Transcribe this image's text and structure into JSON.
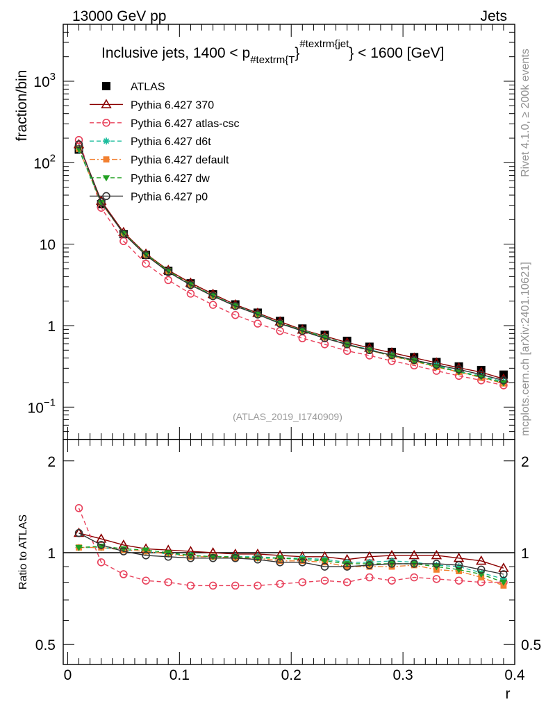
{
  "header": {
    "left": "13000 GeV pp",
    "right": "Jets"
  },
  "side_labels": {
    "rivet": "Rivet 4.1.0, ≥ 200k events",
    "mcplots": "mcplots.cern.ch [arXiv:2401.10621]"
  },
  "chart_data": [
    {
      "type": "line",
      "panel": "main",
      "title_main": "Inclusive jets, 1400 < p",
      "title_sub": "#textrm{T",
      "title_sup": "#textrm{jet",
      "title_end": "} < 1600 [GeV]",
      "ylabel": "fraction/bin",
      "yscale": "log",
      "ylim": [
        0.04,
        5000
      ],
      "xlim": [
        -0.004,
        0.4
      ],
      "yticks": [
        {
          "value": 1000,
          "base": "10",
          "exp": "3"
        },
        {
          "value": 100,
          "base": "10",
          "exp": "2"
        },
        {
          "value": 10,
          "base": "10",
          "exp": ""
        },
        {
          "value": 1,
          "base": "1",
          "exp": ""
        },
        {
          "value": 0.1,
          "base": "10",
          "exp": "−1"
        }
      ],
      "watermark": "(ATLAS_2019_I1740909)",
      "x": [
        0.01,
        0.03,
        0.05,
        0.07,
        0.09,
        0.11,
        0.13,
        0.15,
        0.17,
        0.19,
        0.21,
        0.23,
        0.25,
        0.27,
        0.29,
        0.31,
        0.33,
        0.35,
        0.37,
        0.39
      ],
      "series": [
        {
          "name": "ATLAS",
          "color": "#000000",
          "marker": "square",
          "line": "none",
          "values": [
            145,
            31,
            13.3,
            7.4,
            4.7,
            3.3,
            2.42,
            1.82,
            1.44,
            1.14,
            0.92,
            0.77,
            0.65,
            0.55,
            0.475,
            0.41,
            0.357,
            0.315,
            0.285,
            0.25
          ]
        },
        {
          "name": "Pythia 6.427 370",
          "color": "#8b0000",
          "marker": "triangle-open",
          "line": "solid",
          "values": [
            168,
            34,
            14.0,
            7.6,
            4.8,
            3.35,
            2.44,
            1.81,
            1.43,
            1.12,
            0.89,
            0.745,
            0.62,
            0.533,
            0.466,
            0.403,
            0.35,
            0.304,
            0.268,
            0.222
          ]
        },
        {
          "name": "Pythia 6.427 atlas-csc",
          "color": "#e8405a",
          "marker": "circle-open",
          "line": "dashed",
          "values": [
            190,
            28,
            10.9,
            5.75,
            3.62,
            2.47,
            1.8,
            1.35,
            1.06,
            0.86,
            0.7,
            0.59,
            0.49,
            0.43,
            0.368,
            0.325,
            0.279,
            0.242,
            0.213,
            0.185
          ]
        },
        {
          "name": "Pythia 6.427 d6t",
          "color": "#1abc9c",
          "marker": "star",
          "line": "dashed",
          "values": [
            145,
            32,
            13.6,
            7.5,
            4.68,
            3.22,
            2.37,
            1.77,
            1.4,
            1.08,
            0.88,
            0.73,
            0.59,
            0.51,
            0.43,
            0.37,
            0.325,
            0.275,
            0.24,
            0.205
          ]
        },
        {
          "name": "Pythia 6.427 default",
          "color": "#f28030",
          "marker": "square-filled",
          "line": "dashdot",
          "values": [
            148,
            32,
            13.5,
            7.4,
            4.65,
            3.2,
            2.34,
            1.74,
            1.38,
            1.07,
            0.87,
            0.72,
            0.58,
            0.5,
            0.42,
            0.365,
            0.31,
            0.27,
            0.23,
            0.195
          ]
        },
        {
          "name": "Pythia 6.427 dw",
          "color": "#22a022",
          "marker": "triangle-down",
          "line": "dashed",
          "values": [
            148,
            32.5,
            13.6,
            7.5,
            4.7,
            3.2,
            2.34,
            1.75,
            1.38,
            1.07,
            0.87,
            0.72,
            0.58,
            0.5,
            0.425,
            0.37,
            0.315,
            0.27,
            0.235,
            0.198
          ]
        },
        {
          "name": "Pythia 6.427 p0",
          "color": "#333333",
          "marker": "circle-open",
          "line": "solid",
          "values": [
            168,
            33,
            13.4,
            7.3,
            4.55,
            3.15,
            2.3,
            1.74,
            1.37,
            1.06,
            0.86,
            0.7,
            0.59,
            0.5,
            0.435,
            0.378,
            0.33,
            0.29,
            0.25,
            0.213
          ]
        }
      ]
    },
    {
      "type": "line",
      "panel": "ratio",
      "ylabel": "Ratio to ATLAS",
      "xlabel": "r",
      "yscale": "log",
      "ylim": [
        0.43,
        2.35
      ],
      "xlim": [
        -0.004,
        0.4
      ],
      "yticks": [
        {
          "value": 2,
          "label": "2"
        },
        {
          "value": 1,
          "label": "1"
        },
        {
          "value": 0.5,
          "label": "0.5"
        }
      ],
      "xticks": [
        {
          "value": 0,
          "label": "0"
        },
        {
          "value": 0.1,
          "label": "0.1"
        },
        {
          "value": 0.2,
          "label": "0.2"
        },
        {
          "value": 0.3,
          "label": "0.3"
        },
        {
          "value": 0.4,
          "label": "0.4"
        }
      ],
      "x": [
        0.01,
        0.03,
        0.05,
        0.07,
        0.09,
        0.11,
        0.13,
        0.15,
        0.17,
        0.19,
        0.21,
        0.23,
        0.25,
        0.27,
        0.29,
        0.31,
        0.33,
        0.35,
        0.37,
        0.39
      ],
      "series": [
        {
          "name": "Pythia 6.427 370",
          "color": "#8b0000",
          "marker": "triangle-open",
          "line": "solid",
          "values": [
            1.16,
            1.11,
            1.06,
            1.03,
            1.02,
            1.01,
            1.0,
            0.99,
            0.99,
            0.98,
            0.97,
            0.97,
            0.95,
            0.97,
            0.98,
            0.98,
            0.98,
            0.96,
            0.94,
            0.89
          ]
        },
        {
          "name": "Pythia 6.427 atlas-csc",
          "color": "#e8405a",
          "marker": "circle-open",
          "line": "dashed",
          "values": [
            1.4,
            0.93,
            0.85,
            0.81,
            0.8,
            0.78,
            0.78,
            0.78,
            0.78,
            0.79,
            0.8,
            0.81,
            0.8,
            0.83,
            0.81,
            0.83,
            0.82,
            0.81,
            0.8,
            0.8
          ]
        },
        {
          "name": "Pythia 6.427 d6t",
          "color": "#1abc9c",
          "marker": "star",
          "line": "dashed",
          "values": [
            1.04,
            1.04,
            1.02,
            1.01,
            0.99,
            0.98,
            0.97,
            0.97,
            0.97,
            0.96,
            0.96,
            0.95,
            0.93,
            0.93,
            0.94,
            0.93,
            0.91,
            0.9,
            0.86,
            0.82
          ]
        },
        {
          "name": "Pythia 6.427 default",
          "color": "#f28030",
          "marker": "square-filled",
          "line": "dashdot",
          "values": [
            1.04,
            1.04,
            1.02,
            1.01,
            0.99,
            0.97,
            0.97,
            0.96,
            0.96,
            0.94,
            0.94,
            0.93,
            0.9,
            0.9,
            0.9,
            0.91,
            0.88,
            0.87,
            0.83,
            0.78
          ]
        },
        {
          "name": "Pythia 6.427 dw",
          "color": "#22a022",
          "marker": "triangle-down",
          "line": "dashed",
          "values": [
            1.04,
            1.05,
            1.03,
            1.02,
            1.0,
            0.98,
            0.97,
            0.97,
            0.96,
            0.96,
            0.95,
            0.94,
            0.92,
            0.92,
            0.92,
            0.92,
            0.9,
            0.88,
            0.85,
            0.8
          ]
        },
        {
          "name": "Pythia 6.427 p0",
          "color": "#333333",
          "marker": "circle-open",
          "line": "solid",
          "values": [
            1.16,
            1.06,
            1.01,
            0.98,
            0.97,
            0.96,
            0.96,
            0.96,
            0.95,
            0.93,
            0.93,
            0.9,
            0.9,
            0.91,
            0.92,
            0.92,
            0.92,
            0.91,
            0.88,
            0.85
          ]
        }
      ]
    }
  ]
}
